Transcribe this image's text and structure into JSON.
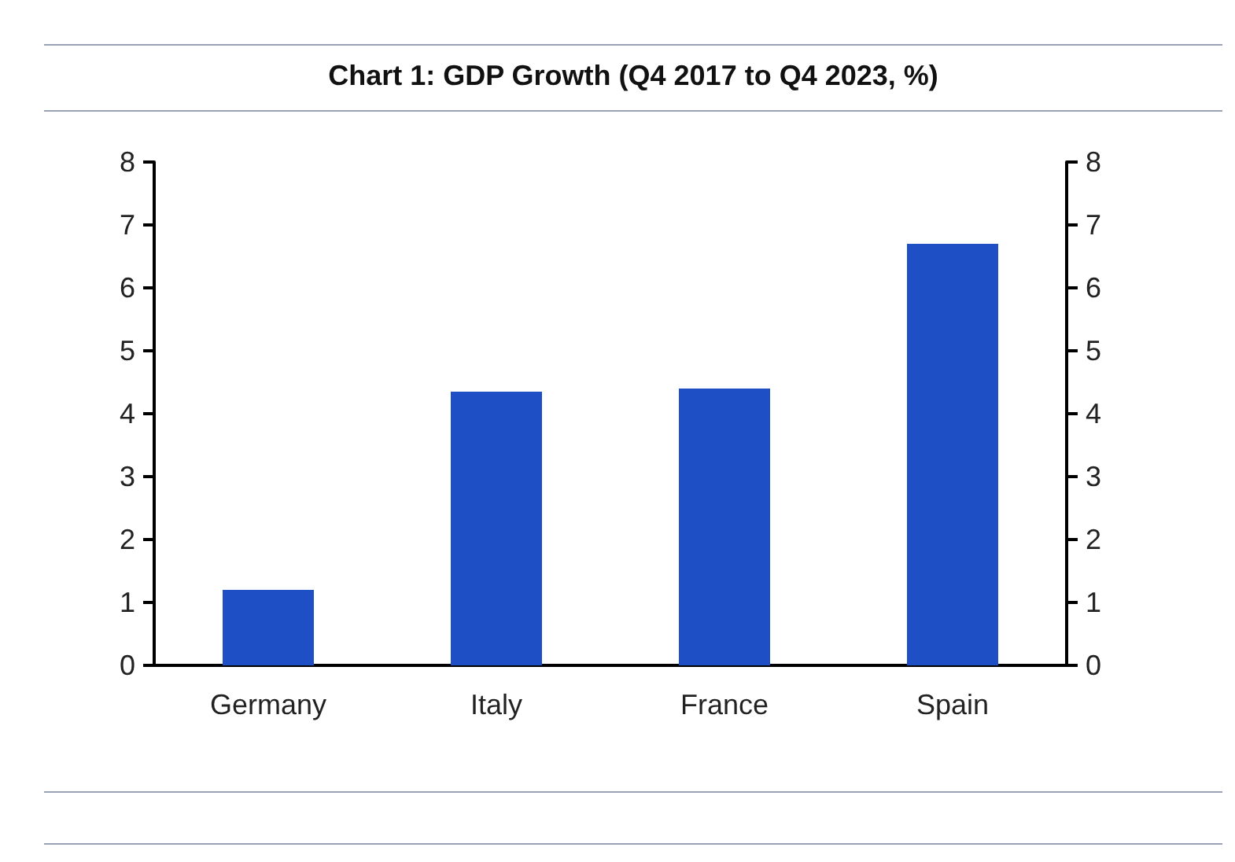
{
  "chart_data": {
    "type": "bar",
    "title": "Chart 1: GDP Growth (Q4 2017 to Q4 2023, %)",
    "categories": [
      "Germany",
      "Italy",
      "France",
      "Spain"
    ],
    "values": [
      1.2,
      4.35,
      4.4,
      6.7
    ],
    "color": "#1f4fc4",
    "ylim": [
      0,
      8
    ],
    "yticks": [
      0,
      1,
      2,
      3,
      4,
      5,
      6,
      7,
      8
    ],
    "y2lim": [
      0,
      8
    ],
    "y2ticks": [
      0,
      1,
      2,
      3,
      4,
      5,
      6,
      7,
      8
    ],
    "data_labels": false
  }
}
